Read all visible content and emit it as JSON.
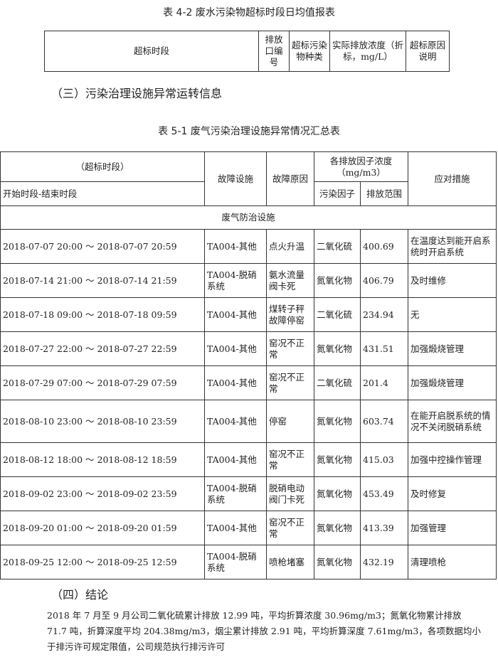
{
  "t42": {
    "caption": "表 4-2 废水污染物超标时段日均值报表",
    "headers": [
      "超标时段",
      "排放口编号",
      "超标污染物种类",
      "实际排放浓度（折标，mg/L）",
      "超标原因说明"
    ]
  },
  "section3": "（三）污染治理设施异常运转信息",
  "t51": {
    "caption": "表 5-1 废气污染治理设施异常情况汇总表",
    "h_period": "（超标时段）",
    "h_period_sub": "开始时段-结束时段",
    "h_facility": "故障设施",
    "h_reason": "故障原因",
    "h_conc": "各排放因子浓度（mg/m3）",
    "h_factor": "污染因子",
    "h_range": "排放范围",
    "h_measure": "应对措施",
    "group": "废气防治设施",
    "rows": [
      {
        "period": "2018-07-07 20:00 ～ 2018-07-07 20:59",
        "facility": "TA004-其他",
        "reason": "点火升温",
        "factor": "二氧化硫",
        "value": "400.69",
        "measure": "在温度达到能开启系统时开启系统"
      },
      {
        "period": "2018-07-14 21:00 ～ 2018-07-14 21:59",
        "facility": "TA004-脱硝系统",
        "reason": "氨水流量阀卡死",
        "factor": "氮氧化物",
        "value": "406.79",
        "measure": "及时维修"
      },
      {
        "period": "2018-07-18 09:00 ～ 2018-07-18 09:59",
        "facility": "TA004-其他",
        "reason": "煤转子秤故障停窑",
        "factor": "二氧化硫",
        "value": "234.94",
        "measure": "无"
      },
      {
        "period": "2018-07-27 22:00 ～ 2018-07-27 22:59",
        "facility": "TA004-其他",
        "reason": "窑况不正常",
        "factor": "氮氧化物",
        "value": "431.51",
        "measure": "加强煅烧管理"
      },
      {
        "period": "2018-07-29 07:00 ～ 2018-07-29 07:59",
        "facility": "TA004-其他",
        "reason": "窑况不正常",
        "factor": "二氧化硫",
        "value": "201.4",
        "measure": "加强煅烧管理"
      },
      {
        "period": "2018-08-10 23:00 ～ 2018-08-10 23:59",
        "facility": "TA004-其他",
        "reason": "停窑",
        "factor": "氮氧化物",
        "value": "603.74",
        "measure": "在能开启脱系统的情况不关闭脱硝系统"
      },
      {
        "period": "2018-08-12 18:00 ～ 2018-08-12 18:59",
        "facility": "TA004-其他",
        "reason": "窑况不正常",
        "factor": "氮氧化物",
        "value": "415.03",
        "measure": "加强中控操作管理"
      },
      {
        "period": "2018-09-02 23:00 ～ 2018-09-02 23:59",
        "facility": "TA004-脱硝系统",
        "reason": "脱硝电动阀门卡死",
        "factor": "氮氧化物",
        "value": "453.49",
        "measure": "及时修复"
      },
      {
        "period": "2018-09-20 01:00 ～ 2018-09-20 01:59",
        "facility": "TA004-其他",
        "reason": "窑况不正常",
        "factor": "氮氧化物",
        "value": "413.39",
        "measure": "加强管理"
      },
      {
        "period": "2018-09-25 12:00 ～ 2018-09-25 12:59",
        "facility": "TA004-脱硝系统",
        "reason": "喷枪堵塞",
        "factor": "氮氧化物",
        "value": "432.19",
        "measure": "清理喷枪"
      }
    ]
  },
  "section4": "（四）结论",
  "conclusion": "2018 年 7 月至 9 月公司二氧化硫累计排放 12.99 吨，平均折算浓度 30.96mg/m3；氮氧化物累计排放 71.7 吨，折算深度平均 204.38mg/m3，烟尘累计排放 2.91 吨，平均折算深度 7.61mg/m3，各项数据均小于排污许可规定限值，公司规范执行排污许可"
}
